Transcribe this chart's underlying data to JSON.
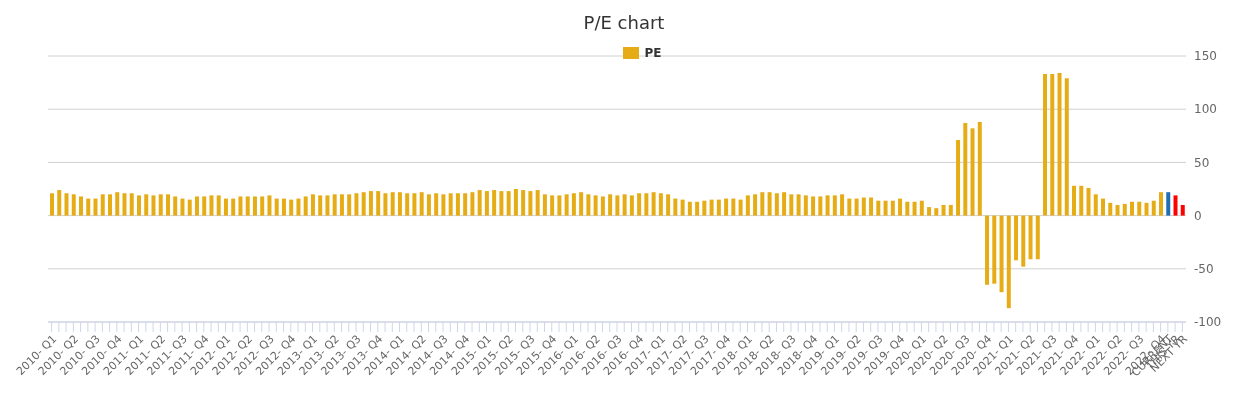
{
  "chart_data": {
    "type": "bar",
    "title": "P/E chart",
    "legend": "top",
    "grid": "y",
    "ylim": [
      -100,
      150
    ],
    "yticks": [
      -100,
      -50,
      0,
      50,
      100,
      150
    ],
    "categories": [
      "2010- Q1",
      null,
      null,
      "2010- Q2",
      null,
      null,
      "2010- Q3",
      null,
      null,
      "2010- Q4",
      null,
      null,
      "2011- Q1",
      null,
      null,
      "2011- Q2",
      null,
      null,
      "2011- Q3",
      null,
      null,
      "2011- Q4",
      null,
      null,
      "2012- Q1",
      null,
      null,
      "2012- Q2",
      null,
      null,
      "2012- Q3",
      null,
      null,
      "2012- Q4",
      null,
      null,
      "2013- Q1",
      null,
      null,
      "2013- Q2",
      null,
      null,
      "2013- Q3",
      null,
      null,
      "2013- Q4",
      null,
      null,
      "2014- Q1",
      null,
      null,
      "2014- Q2",
      null,
      null,
      "2014- Q3",
      null,
      null,
      "2014- Q4",
      null,
      null,
      "2015- Q1",
      null,
      null,
      "2015- Q2",
      null,
      null,
      "2015- Q3",
      null,
      null,
      "2015- Q4",
      null,
      null,
      "2016- Q1",
      null,
      null,
      "2016- Q2",
      null,
      null,
      "2016- Q3",
      null,
      null,
      "2016- Q4",
      null,
      null,
      "2017- Q1",
      null,
      null,
      "2017- Q2",
      null,
      null,
      "2017- Q3",
      null,
      null,
      "2017- Q4",
      null,
      null,
      "2018- Q1",
      null,
      null,
      "2018- Q2",
      null,
      null,
      "2018- Q3",
      null,
      null,
      "2018- Q4",
      null,
      null,
      "2019- Q1",
      null,
      null,
      "2019- Q2",
      null,
      null,
      "2019- Q3",
      null,
      null,
      "2019- Q4",
      null,
      null,
      "2020- Q1",
      null,
      null,
      "2020- Q2",
      null,
      null,
      "2020- Q3",
      null,
      null,
      "2020- Q4",
      null,
      null,
      "2021- Q1",
      null,
      null,
      "2021- Q2",
      null,
      null,
      "2021- Q3",
      null,
      null,
      "2021- Q4",
      null,
      null,
      "2022- Q1",
      null,
      null,
      "2022- Q2",
      null,
      null,
      "2022- Q3",
      null,
      null,
      "2022- Q4",
      "CURRENT",
      "THIS YR",
      "NEXT YR"
    ],
    "series": [
      {
        "name": "PE",
        "color": "#e6ac15",
        "values": [
          21,
          24,
          21,
          20,
          18,
          16,
          16,
          20,
          20,
          22,
          21,
          21,
          19,
          20,
          19,
          20,
          20,
          18,
          16,
          15,
          18,
          18,
          19,
          19,
          16,
          16,
          18,
          18,
          18,
          18,
          19,
          16,
          16,
          15,
          16,
          18,
          20,
          19,
          19,
          20,
          20,
          20,
          21,
          22,
          23,
          23,
          21,
          22,
          22,
          21,
          21,
          22,
          20,
          21,
          20,
          21,
          21,
          21,
          22,
          24,
          23,
          24,
          23,
          23,
          25,
          24,
          23,
          24,
          20,
          19,
          19,
          20,
          21,
          22,
          20,
          19,
          18,
          20,
          19,
          20,
          19,
          21,
          21,
          22,
          21,
          20,
          16,
          15,
          13,
          13,
          14,
          15,
          15,
          16,
          16,
          15,
          19,
          20,
          22,
          22,
          21,
          22,
          20,
          20,
          19,
          18,
          18,
          19,
          19,
          20,
          16,
          16,
          17,
          17,
          14,
          14,
          14,
          16,
          13,
          13,
          14,
          8,
          7,
          10,
          10,
          71,
          87,
          82,
          88,
          -65,
          -64,
          -72,
          -87,
          -42,
          -48,
          -41,
          -41,
          133,
          133,
          134,
          129,
          28,
          28,
          26,
          20,
          16,
          12,
          10,
          11,
          13,
          13,
          12,
          14,
          22,
          22,
          19,
          10
        ],
        "colors": [
          "#e6ac15",
          "#e6ac15",
          "#e6ac15",
          "#e6ac15",
          "#e6ac15",
          "#e6ac15",
          "#e6ac15",
          "#e6ac15",
          "#e6ac15",
          "#e6ac15",
          "#e6ac15",
          "#e6ac15",
          "#e6ac15",
          "#e6ac15",
          "#e6ac15",
          "#e6ac15",
          "#e6ac15",
          "#e6ac15",
          "#e6ac15",
          "#e6ac15",
          "#e6ac15",
          "#e6ac15",
          "#e6ac15",
          "#e6ac15",
          "#e6ac15",
          "#e6ac15",
          "#e6ac15",
          "#e6ac15",
          "#e6ac15",
          "#e6ac15",
          "#e6ac15",
          "#e6ac15",
          "#e6ac15",
          "#e6ac15",
          "#e6ac15",
          "#e6ac15",
          "#e6ac15",
          "#e6ac15",
          "#e6ac15",
          "#e6ac15",
          "#e6ac15",
          "#e6ac15",
          "#e6ac15",
          "#e6ac15",
          "#e6ac15",
          "#e6ac15",
          "#e6ac15",
          "#e6ac15",
          "#e6ac15",
          "#e6ac15",
          "#e6ac15",
          "#e6ac15",
          "#e6ac15",
          "#e6ac15",
          "#e6ac15",
          "#e6ac15",
          "#e6ac15",
          "#e6ac15",
          "#e6ac15",
          "#e6ac15",
          "#e6ac15",
          "#e6ac15",
          "#e6ac15",
          "#e6ac15",
          "#e6ac15",
          "#e6ac15",
          "#e6ac15",
          "#e6ac15",
          "#e6ac15",
          "#e6ac15",
          "#e6ac15",
          "#e6ac15",
          "#e6ac15",
          "#e6ac15",
          "#e6ac15",
          "#e6ac15",
          "#e6ac15",
          "#e6ac15",
          "#e6ac15",
          "#e6ac15",
          "#e6ac15",
          "#e6ac15",
          "#e6ac15",
          "#e6ac15",
          "#e6ac15",
          "#e6ac15",
          "#e6ac15",
          "#e6ac15",
          "#e6ac15",
          "#e6ac15",
          "#e6ac15",
          "#e6ac15",
          "#e6ac15",
          "#e6ac15",
          "#e6ac15",
          "#e6ac15",
          "#e6ac15",
          "#e6ac15",
          "#e6ac15",
          "#e6ac15",
          "#e6ac15",
          "#e6ac15",
          "#e6ac15",
          "#e6ac15",
          "#e6ac15",
          "#e6ac15",
          "#e6ac15",
          "#e6ac15",
          "#e6ac15",
          "#e6ac15",
          "#e6ac15",
          "#e6ac15",
          "#e6ac15",
          "#e6ac15",
          "#e6ac15",
          "#e6ac15",
          "#e6ac15",
          "#e6ac15",
          "#e6ac15",
          "#e6ac15",
          "#e6ac15",
          "#e6ac15",
          "#e6ac15",
          "#e6ac15",
          "#e6ac15",
          "#e6ac15",
          "#e6ac15",
          "#e6ac15",
          "#e6ac15",
          "#e6ac15",
          "#e6ac15",
          "#e6ac15",
          "#e6ac15",
          "#e6ac15",
          "#e6ac15",
          "#e6ac15",
          "#e6ac15",
          "#e6ac15",
          "#e6ac15",
          "#e6ac15",
          "#e6ac15",
          "#e6ac15",
          "#e6ac15",
          "#e6ac15",
          "#e6ac15",
          "#e6ac15",
          "#e6ac15",
          "#e6ac15",
          "#e6ac15",
          "#e6ac15",
          "#e6ac15",
          "#e6ac15",
          "#e6ac15",
          "#e6ac15",
          "#1f6fb2",
          "#ff0000",
          "#ff0000"
        ]
      }
    ]
  }
}
